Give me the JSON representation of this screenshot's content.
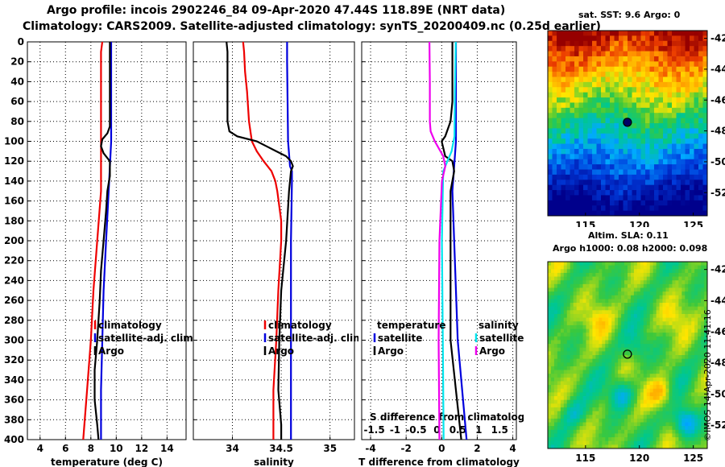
{
  "title_line1": "Argo profile: incois 2902246_84 09-Apr-2020 47.44S 118.89E (NRT data)",
  "title_line2": "Climatology: CARS2009. Satellite-adjusted climatology: synTS_20200409.nc (0.25d earlier)",
  "sst_title": "sat. SST: 9.6 Argo: 0",
  "sla_title1": "Altim. SLA: 0.11",
  "sla_title2": "Argo h1000: 0.08 h2000: 0.098",
  "stamp": "©IMOS 14-Apr-2020 11:41:16",
  "colors": {
    "climatology": "#ee0000",
    "satellite": "#0000dd",
    "argo": "#000000",
    "s_satellite": "#00e5ee",
    "s_argo": "#ee00ee"
  },
  "chart_data": [
    {
      "type": "line",
      "name": "temperature",
      "xlabel": "temperature (deg C)",
      "ylabel": "",
      "xlim": [
        3,
        15.5
      ],
      "ylim": [
        400,
        0
      ],
      "x_ticks": [
        4,
        6,
        8,
        10,
        12,
        14
      ],
      "y_ticks": [
        0,
        20,
        40,
        60,
        80,
        100,
        120,
        140,
        160,
        180,
        200,
        220,
        240,
        260,
        280,
        300,
        320,
        340,
        360,
        380,
        400
      ],
      "legend": [
        "climatology",
        "satellite-adj. clim.",
        "Argo"
      ],
      "series": [
        {
          "name": "climatology",
          "color": "#ee0000",
          "depth": [
            0,
            10,
            50,
            100,
            150,
            200,
            250,
            300,
            350,
            400
          ],
          "values": [
            8.9,
            8.8,
            8.8,
            8.8,
            8.8,
            8.5,
            8.2,
            8.0,
            7.7,
            7.4
          ]
        },
        {
          "name": "satellite-adj. clim.",
          "color": "#0000dd",
          "depth": [
            0,
            10,
            50,
            100,
            150,
            200,
            250,
            300,
            350,
            400
          ],
          "values": [
            9.6,
            9.6,
            9.6,
            9.6,
            9.4,
            9.2,
            9.0,
            8.9,
            8.8,
            8.8
          ]
        },
        {
          "name": "Argo",
          "color": "#000000",
          "depth": [
            0,
            10,
            50,
            85,
            92,
            98,
            105,
            112,
            120,
            135,
            150,
            170,
            200,
            230,
            260,
            300,
            330,
            360,
            385,
            400
          ],
          "values": [
            9.5,
            9.5,
            9.5,
            9.5,
            9.3,
            8.9,
            8.8,
            9.0,
            9.5,
            9.5,
            9.3,
            9.2,
            9.0,
            8.8,
            8.7,
            8.5,
            8.3,
            8.3,
            8.5,
            8.6
          ]
        }
      ]
    },
    {
      "type": "line",
      "name": "salinity",
      "xlabel": "salinity",
      "ylabel": "",
      "xlim": [
        33.6,
        35.25
      ],
      "ylim": [
        400,
        0
      ],
      "x_ticks": [
        34,
        34.5,
        35
      ],
      "x_tick_labels": [
        "34",
        "34.5",
        "35"
      ],
      "legend": [
        "climatology",
        "satellite-adj. clim.",
        "Argo"
      ],
      "series": [
        {
          "name": "climatology",
          "color": "#ee0000",
          "depth": [
            0,
            10,
            30,
            50,
            80,
            100,
            110,
            120,
            130,
            140,
            150,
            180,
            200,
            250,
            300,
            350,
            400
          ],
          "values": [
            34.11,
            34.12,
            34.13,
            34.15,
            34.17,
            34.2,
            34.25,
            34.32,
            34.4,
            34.44,
            34.46,
            34.5,
            34.5,
            34.47,
            34.45,
            34.42,
            34.42
          ]
        },
        {
          "name": "satellite-adj. clim.",
          "color": "#0000dd",
          "depth": [
            0,
            20,
            100,
            125,
            130,
            140,
            200,
            300,
            400
          ],
          "values": [
            34.56,
            34.56,
            34.57,
            34.59,
            34.61,
            34.61,
            34.6,
            34.6,
            34.6
          ]
        },
        {
          "name": "Argo",
          "color": "#000000",
          "depth": [
            0,
            10,
            80,
            90,
            95,
            100,
            105,
            110,
            115,
            120,
            125,
            130,
            150,
            200,
            250,
            300,
            350,
            385,
            400
          ],
          "values": [
            33.94,
            33.95,
            33.95,
            33.97,
            34.05,
            34.25,
            34.35,
            34.45,
            34.55,
            34.6,
            34.62,
            34.6,
            34.58,
            34.55,
            34.5,
            34.48,
            34.47,
            34.5,
            34.5
          ]
        }
      ]
    },
    {
      "type": "line",
      "name": "difference",
      "xlabel": "T difference from climatology",
      "ylabel": "",
      "xlim": [
        -4.5,
        4.2
      ],
      "ylim": [
        400,
        0
      ],
      "x_ticks": [
        -4,
        -2,
        0,
        2,
        4
      ],
      "x_tick_labels": [
        "-4",
        "-2",
        "0",
        "2",
        "4"
      ],
      "s_xlabel": "S difference from climatology",
      "s_x_ticks": [
        -1.5,
        -1,
        -0.5,
        0,
        0.5,
        1,
        1.5
      ],
      "s_x_tick_labels": [
        "-1.5",
        "-1",
        "-0.5",
        "0",
        "0.5",
        "1",
        "1.5"
      ],
      "s_xlim": [
        -1.8,
        1.9
      ],
      "legend_temperature_title": "temperature",
      "legend_salinity_title": "salinity",
      "legend_labels": [
        "satellite",
        "Argo"
      ],
      "series": [
        {
          "name": "T satellite",
          "color": "#0000dd",
          "depth": [
            0,
            50,
            100,
            150,
            200,
            300,
            400
          ],
          "values": [
            0.8,
            0.8,
            0.8,
            0.6,
            0.7,
            0.9,
            1.4
          ]
        },
        {
          "name": "T Argo",
          "color": "#000000",
          "depth": [
            0,
            60,
            80,
            95,
            100,
            115,
            120,
            130,
            150,
            200,
            300,
            400
          ],
          "values": [
            0.6,
            0.6,
            0.5,
            0.2,
            0.0,
            0.2,
            0.6,
            0.7,
            0.5,
            0.5,
            0.5,
            1.1
          ]
        },
        {
          "name": "S satellite",
          "color": "#00e5ee",
          "depth": [
            0,
            50,
            95,
            110,
            120,
            130,
            150,
            200,
            300,
            400
          ],
          "values": [
            0.45,
            0.43,
            0.42,
            0.35,
            0.25,
            0.15,
            0.14,
            0.12,
            0.14,
            0.16
          ]
        },
        {
          "name": "S Argo",
          "color": "#ee00ee",
          "depth": [
            0,
            40,
            80,
            90,
            100,
            115,
            125,
            140,
            200,
            300,
            400
          ],
          "values": [
            -0.18,
            -0.17,
            -0.17,
            -0.15,
            -0.05,
            0.15,
            0.2,
            0.12,
            0.06,
            0.04,
            0.06
          ]
        }
      ]
    },
    {
      "type": "heatmap",
      "name": "sst_map",
      "xlim": [
        111.5,
        126.3
      ],
      "ylim": [
        -53.5,
        -41.5
      ],
      "x_ticks": [
        115,
        120,
        125
      ],
      "y_ticks": [
        -42,
        -44,
        -46,
        -48,
        -50,
        -52
      ],
      "marker": {
        "lon": 118.89,
        "lat": -47.44
      }
    },
    {
      "type": "heatmap",
      "name": "sla_map",
      "xlim": [
        111.5,
        126.3
      ],
      "ylim": [
        -53.5,
        -41.5
      ],
      "x_ticks": [
        115,
        120,
        125
      ],
      "y_ticks": [
        -42,
        -44,
        -46,
        -48,
        -50,
        -52
      ],
      "marker": {
        "lon": 118.89,
        "lat": -47.44
      }
    }
  ]
}
